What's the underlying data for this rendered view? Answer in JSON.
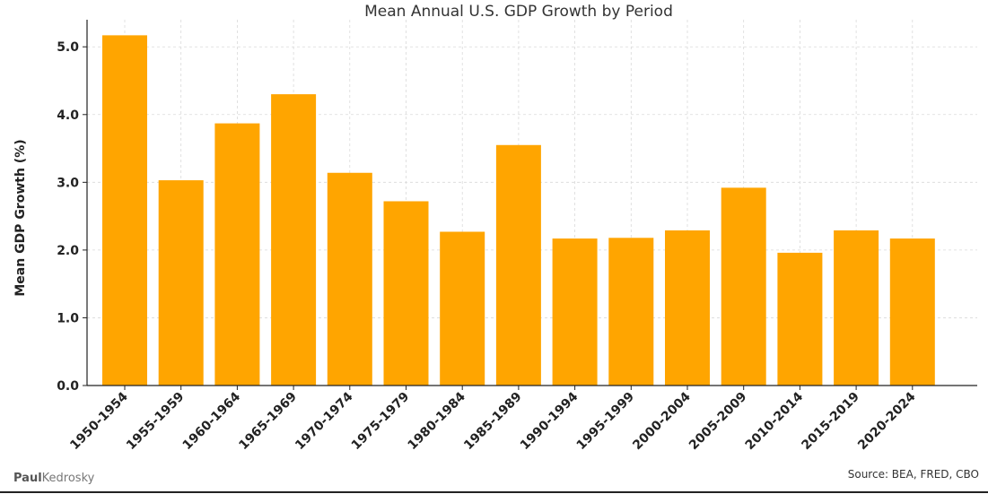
{
  "chart_data": {
    "type": "bar",
    "title": "Mean Annual U.S. GDP Growth by Period",
    "xlabel": "",
    "ylabel": "Mean GDP Growth (%)",
    "categories": [
      "1950-1954",
      "1955-1959",
      "1960-1964",
      "1965-1969",
      "1970-1974",
      "1975-1979",
      "1980-1984",
      "1985-1989",
      "1990-1994",
      "1995-1999",
      "2000-2004",
      "2005-2009",
      "2010-2014",
      "2015-2019",
      "2020-2024"
    ],
    "values": [
      5.17,
      3.03,
      3.87,
      4.3,
      3.14,
      2.72,
      2.27,
      3.55,
      2.17,
      2.18,
      2.29,
      2.92,
      1.96,
      2.29,
      2.17
    ],
    "ylim": [
      0,
      5.4
    ],
    "yticks": [
      "0.0",
      "1.0",
      "2.0",
      "3.0",
      "4.0",
      "5.0"
    ],
    "ytick_values": [
      0,
      1,
      2,
      3,
      4,
      5
    ],
    "grid": true,
    "bar_color": "#FFA500"
  },
  "footer": {
    "brand_bold": "Paul",
    "brand_rest": "Kedrosky",
    "source": "Source: BEA, FRED, CBO"
  }
}
